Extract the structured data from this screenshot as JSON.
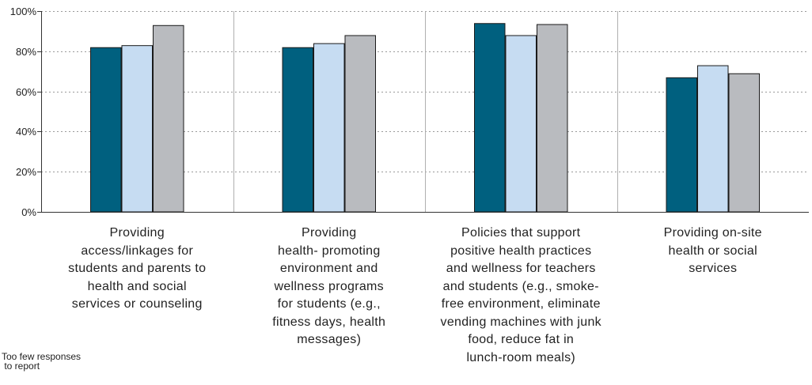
{
  "chart_data": {
    "type": "bar",
    "categories": [
      "Providing\naccess/linkages for\nstudents and parents to\nhealth and social\nservices or counseling",
      "Providing\nhealth- promoting\nenvironment and\nwellness programs\nfor students (e.g.,\nfitness days, health\nmessages)",
      "Policies that support\npositive health practices\nand wellness for teachers\nand students (e.g., smoke-\nfree environment, eliminate\nvending machines with junk\nfood, reduce fat in\nlunch-room meals)",
      "Providing on-site\nhealth or social\nservices"
    ],
    "series": [
      {
        "values": [
          82,
          82,
          94,
          67
        ],
        "color": "#00607f"
      },
      {
        "values": [
          83,
          84,
          88,
          73
        ],
        "color": "#c6dcf2"
      },
      {
        "values": [
          93,
          88,
          93.5,
          69
        ],
        "color": "#b9bbbf"
      }
    ],
    "ylim": [
      0,
      100
    ],
    "yticks": [
      "0%",
      "20%",
      "40%",
      "60%",
      "80%",
      "100%"
    ],
    "ytick_values": [
      0,
      20,
      40,
      60,
      80,
      100
    ],
    "grid": true,
    "footnote": "Too few responses\n to report"
  }
}
